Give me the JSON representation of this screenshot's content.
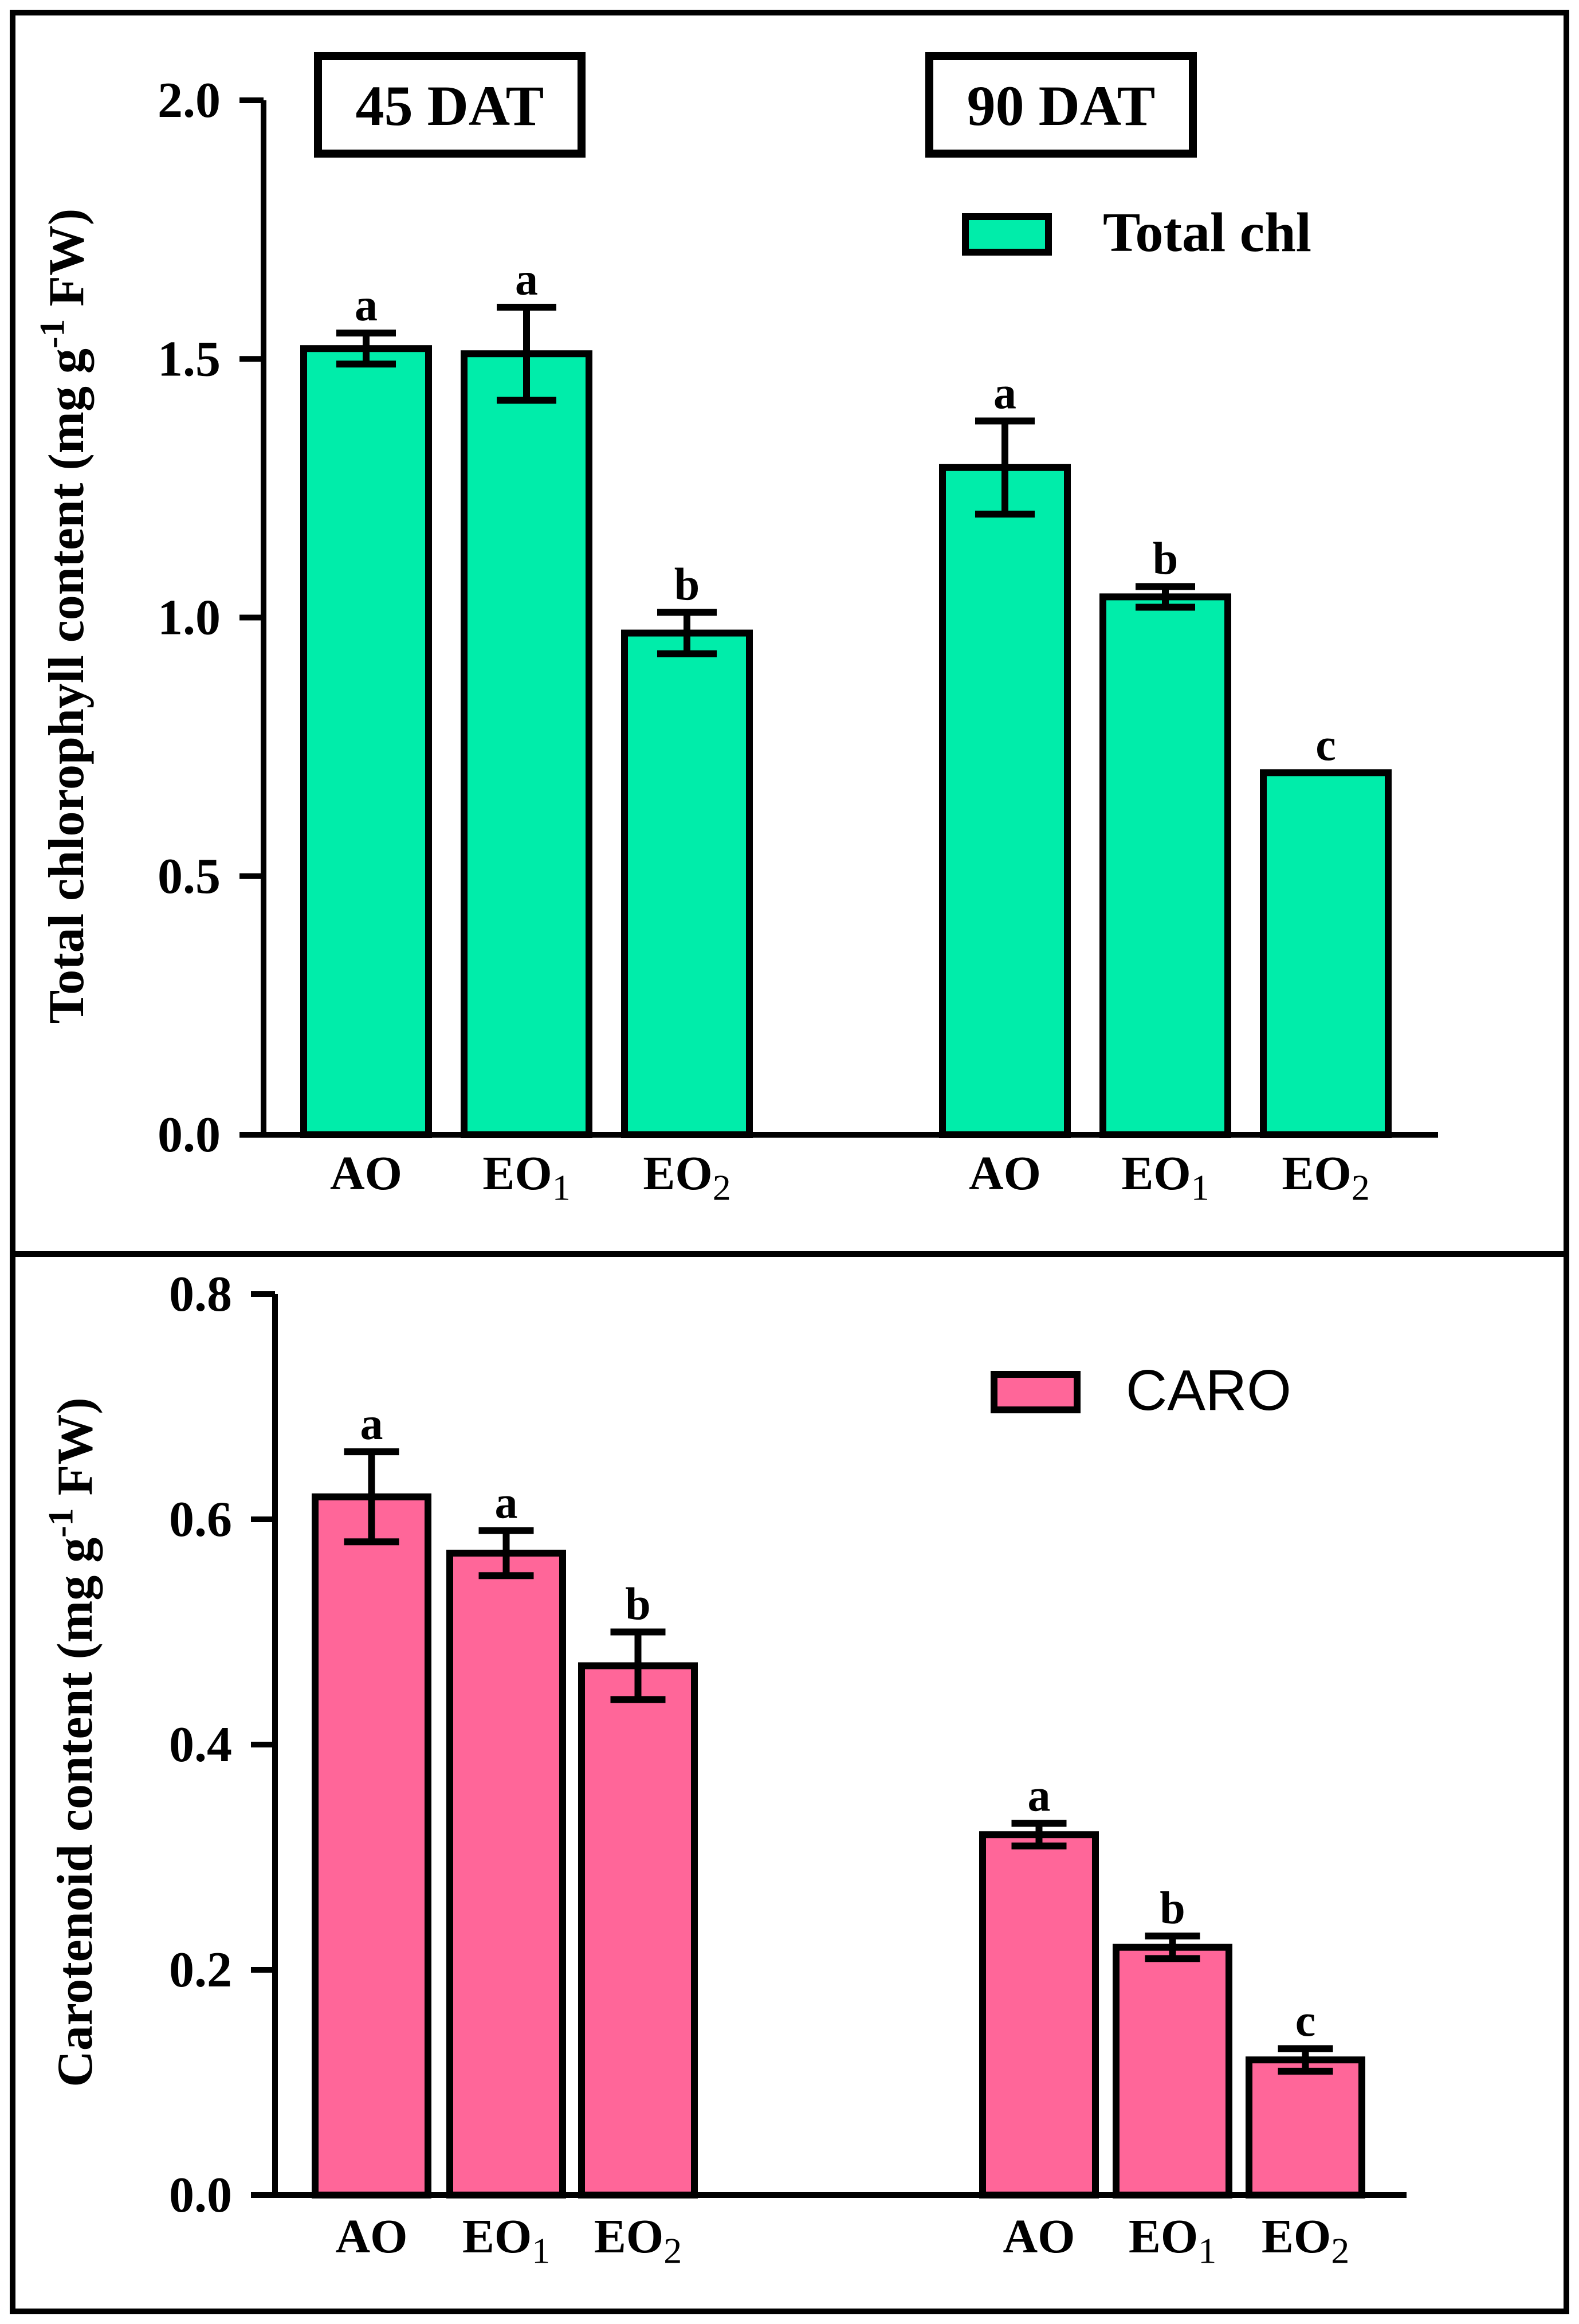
{
  "chart_data": [
    {
      "type": "bar",
      "panel": "top",
      "ylabel": "Total chlorophyll content (mg g-1 FW)",
      "ylabel_main": "Total chlorophyll content (mg g",
      "ylabel_sup": "-1",
      "ylabel_end": " FW)",
      "ylim": [
        0,
        2.0
      ],
      "yticks": [
        "0.0",
        "0.5",
        "1.0",
        "1.5",
        "2.0"
      ],
      "ytick_values": [
        0,
        0.5,
        1.0,
        1.5,
        2.0
      ],
      "groups": [
        {
          "title": "45 DAT",
          "categories": [
            {
              "base": "AO",
              "sub": ""
            },
            {
              "base": "EO",
              "sub": "1"
            },
            {
              "base": "EO",
              "sub": "2"
            }
          ],
          "values": [
            1.52,
            1.51,
            0.97
          ],
          "errors": [
            0.03,
            0.09,
            0.04
          ],
          "letters": [
            "a",
            "a",
            "b"
          ]
        },
        {
          "title": "90 DAT",
          "categories": [
            {
              "base": "AO",
              "sub": ""
            },
            {
              "base": "EO",
              "sub": "1"
            },
            {
              "base": "EO",
              "sub": "2"
            }
          ],
          "values": [
            1.29,
            1.04,
            0.7
          ],
          "errors": [
            0.09,
            0.02,
            0.0
          ],
          "letters": [
            "a",
            "b",
            "c"
          ]
        }
      ],
      "legend": {
        "label": "Total chl",
        "placement": "top-right"
      },
      "bar_color": "#00EDAA"
    },
    {
      "type": "bar",
      "panel": "bottom",
      "ylabel": "Carotenoid content (mg g-1 FW)",
      "ylabel_main": "Carotenoid content (mg g",
      "ylabel_sup": "-1",
      "ylabel_end": " FW)",
      "ylim": [
        0,
        0.8
      ],
      "yticks": [
        "0.0",
        "0.2",
        "0.4",
        "0.6",
        "0.8"
      ],
      "ytick_values": [
        0,
        0.2,
        0.4,
        0.6,
        0.8
      ],
      "groups": [
        {
          "categories": [
            {
              "base": "AO",
              "sub": ""
            },
            {
              "base": "EO",
              "sub": "1"
            },
            {
              "base": "EO",
              "sub": "2"
            }
          ],
          "values": [
            0.62,
            0.57,
            0.47
          ],
          "errors": [
            0.04,
            0.02,
            0.03
          ],
          "letters": [
            "a",
            "a",
            "b"
          ]
        },
        {
          "categories": [
            {
              "base": "AO",
              "sub": ""
            },
            {
              "base": "EO",
              "sub": "1"
            },
            {
              "base": "EO",
              "sub": "2"
            }
          ],
          "values": [
            0.32,
            0.22,
            0.12
          ],
          "errors": [
            0.01,
            0.01,
            0.01
          ],
          "letters": [
            "a",
            "b",
            "c"
          ]
        }
      ],
      "legend": {
        "label": "CARO",
        "placement": "top-right"
      },
      "bar_color": "#FF6699"
    }
  ]
}
